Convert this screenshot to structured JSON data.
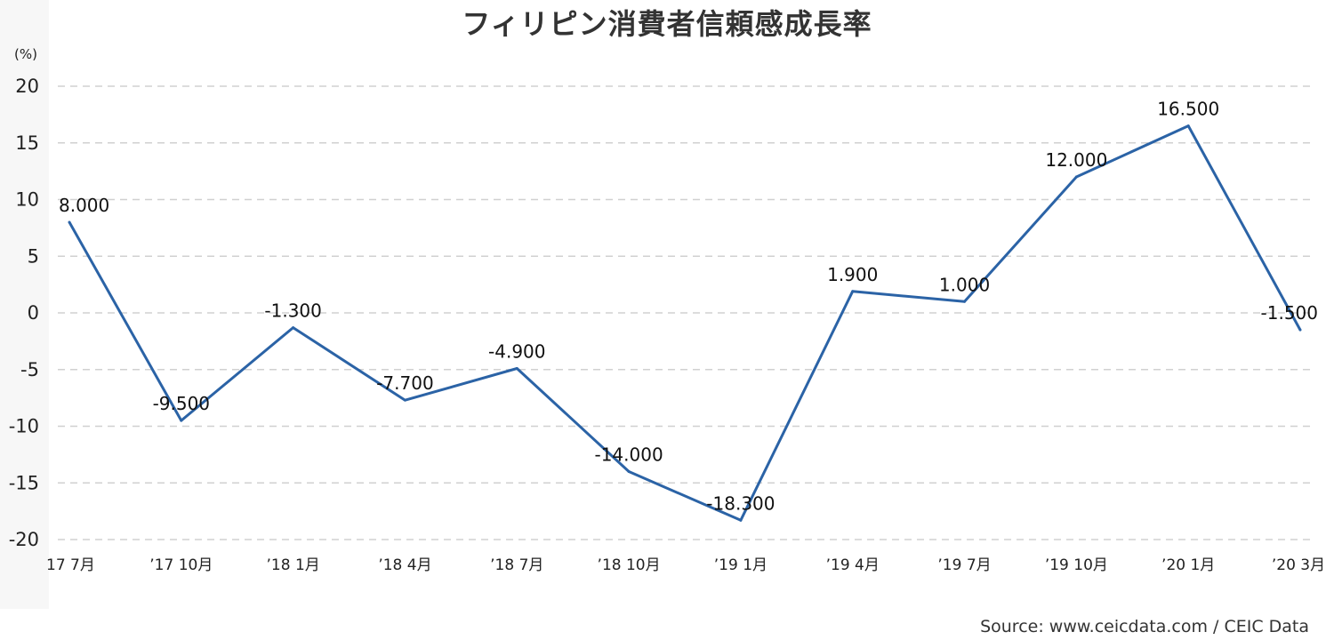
{
  "chart_data": {
    "type": "line",
    "title": "フィリピン消費者信頼感成長率",
    "ylabel": "(%)",
    "xlabel": "",
    "source": "Source: www.ceicdata.com / CEIC Data",
    "categories": [
      "17 7月",
      "’17 10月",
      "’18 1月",
      "’18 4月",
      "’18 7月",
      "’18 10月",
      "’19 1月",
      "’19 4月",
      "’19 7月",
      "’19 10月",
      "’20 1月",
      "’20 3月"
    ],
    "values": [
      8.0,
      -9.5,
      -1.3,
      -7.7,
      -4.9,
      -14.0,
      -18.3,
      1.9,
      1.0,
      12.0,
      16.5,
      -1.5
    ],
    "data_labels": [
      "8.000",
      "-9.500",
      "-1.300",
      "-7.700",
      "-4.900",
      "-14.000",
      "-18.300",
      "1.900",
      "1.000",
      "12.000",
      "16.500",
      "-1.500"
    ],
    "yticks": [
      "20",
      "15",
      "10",
      "5",
      "0",
      "-5",
      "-10",
      "-15",
      "-20"
    ],
    "ylim": [
      -20,
      20
    ],
    "grid": true,
    "line_color": "#2b63a6",
    "grid_color": "#d0d0d0"
  }
}
